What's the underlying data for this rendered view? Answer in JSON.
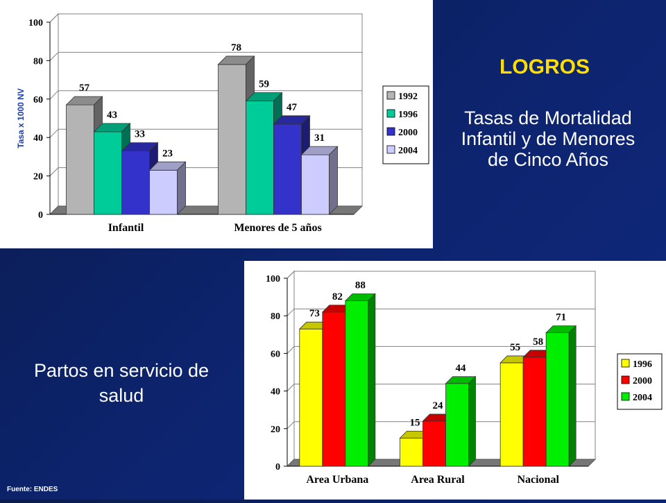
{
  "heading": "LOGROS",
  "subtitle": "Tasas de Mortalidad Infantil y de Menores de Cinco Años",
  "left_title": "Partos en servicio de salud",
  "source": "Fuente: ENDES",
  "colors": {
    "1992": "#b4b4b4",
    "1996_top": "#00cc99",
    "2000_top": "#3333cc",
    "2004_top": "#ccccff",
    "1996_bottom": "#ffff00",
    "2000_bottom": "#ff0000",
    "2004_bottom": "#00ee00"
  },
  "chart_data": [
    {
      "type": "bar",
      "categories": [
        "Infantil",
        "Menores de 5 años"
      ],
      "series": [
        {
          "name": "1992",
          "values": [
            57,
            78
          ]
        },
        {
          "name": "1996",
          "values": [
            43,
            59
          ]
        },
        {
          "name": "2000",
          "values": [
            33,
            47
          ]
        },
        {
          "name": "2004",
          "values": [
            23,
            31
          ]
        }
      ],
      "ylabel": "Tasa x 1000 NV",
      "ylim": [
        0,
        100
      ],
      "yticks": [
        0,
        20,
        40,
        60,
        80,
        100
      ],
      "legend": "right",
      "grid": true
    },
    {
      "type": "bar",
      "categories": [
        "Area Urbana",
        "Area Rural",
        "Nacional"
      ],
      "series": [
        {
          "name": "1996",
          "values": [
            73,
            15,
            55
          ]
        },
        {
          "name": "2000",
          "values": [
            82,
            24,
            58
          ]
        },
        {
          "name": "2004",
          "values": [
            88,
            44,
            71
          ]
        }
      ],
      "ylim": [
        0,
        100
      ],
      "yticks": [
        0,
        20,
        40,
        60,
        80,
        100
      ],
      "legend": "right",
      "grid": true
    }
  ]
}
